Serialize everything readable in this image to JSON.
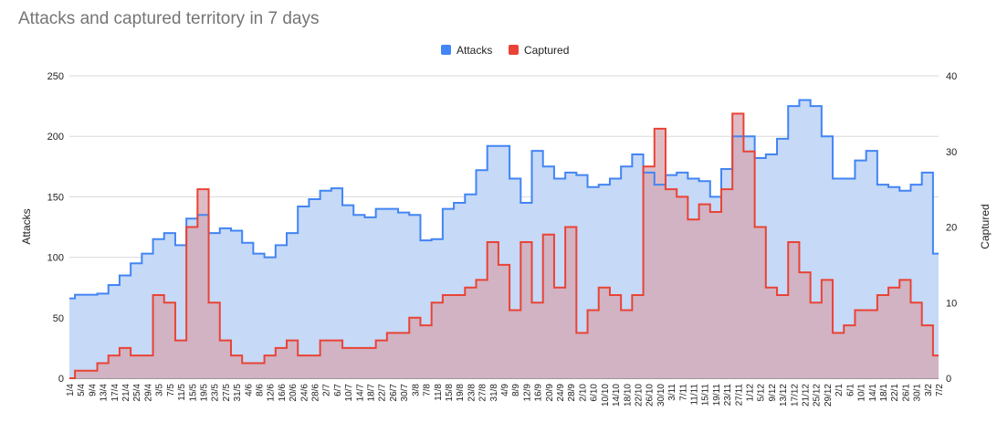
{
  "chart_data": {
    "type": "area",
    "title": "Attacks and captured territory in 7 days",
    "ylabel_left": "Attacks",
    "ylabel_right": "Captured",
    "ylim_left": [
      0,
      250
    ],
    "ylim_right": [
      0,
      40
    ],
    "yticks_left": [
      "0",
      "50",
      "100",
      "150",
      "200",
      "250"
    ],
    "yticks_right": [
      "0",
      "10",
      "20",
      "30",
      "40"
    ],
    "grid": true,
    "legend_position": "top-center",
    "x": [
      "1/4",
      "5/4",
      "9/4",
      "13/4",
      "17/4",
      "21/4",
      "25/4",
      "29/4",
      "3/5",
      "7/5",
      "11/5",
      "15/5",
      "19/5",
      "23/5",
      "27/5",
      "31/5",
      "4/6",
      "8/6",
      "12/6",
      "16/6",
      "20/6",
      "24/6",
      "28/6",
      "2/7",
      "6/7",
      "10/7",
      "14/7",
      "18/7",
      "22/7",
      "26/7",
      "30/7",
      "3/8",
      "7/8",
      "11/8",
      "15/8",
      "19/8",
      "23/8",
      "27/8",
      "31/8",
      "4/9",
      "8/9",
      "12/9",
      "16/9",
      "20/9",
      "24/9",
      "28/9",
      "2/10",
      "6/10",
      "10/10",
      "14/10",
      "18/10",
      "22/10",
      "26/10",
      "30/10",
      "3/11",
      "7/11",
      "11/11",
      "15/11",
      "19/11",
      "23/11",
      "27/11",
      "1/12",
      "5/12",
      "9/12",
      "13/12",
      "17/12",
      "21/12",
      "25/12",
      "29/12",
      "2/1",
      "6/1",
      "10/1",
      "14/1",
      "18/1",
      "22/1",
      "26/1",
      "30/1",
      "3/2",
      "7/2"
    ],
    "series": [
      {
        "name": "Attacks",
        "axis": "left",
        "color": "#4285f4",
        "fill": "#c6d9f7",
        "values": [
          66,
          69,
          69,
          70,
          77,
          85,
          95,
          103,
          115,
          120,
          110,
          132,
          135,
          120,
          124,
          122,
          112,
          103,
          100,
          110,
          120,
          142,
          148,
          155,
          157,
          143,
          135,
          133,
          140,
          140,
          137,
          135,
          114,
          115,
          140,
          145,
          152,
          172,
          192,
          192,
          165,
          145,
          188,
          175,
          165,
          170,
          168,
          158,
          160,
          165,
          175,
          185,
          170,
          160,
          168,
          170,
          165,
          163,
          150,
          173,
          200,
          200,
          182,
          185,
          198,
          225,
          230,
          225,
          200,
          165,
          165,
          180,
          188,
          160,
          158,
          155,
          160,
          170,
          103
        ]
      },
      {
        "name": "Captured",
        "axis": "right",
        "color": "#ea4335",
        "fill": "#d4a6b2",
        "values": [
          0,
          1,
          1,
          2,
          3,
          4,
          3,
          3,
          11,
          10,
          5,
          20,
          25,
          10,
          5,
          3,
          2,
          2,
          3,
          4,
          5,
          3,
          3,
          5,
          5,
          4,
          4,
          4,
          5,
          6,
          6,
          8,
          7,
          10,
          11,
          11,
          12,
          13,
          18,
          15,
          9,
          18,
          10,
          19,
          12,
          20,
          6,
          9,
          12,
          11,
          9,
          11,
          28,
          33,
          25,
          24,
          21,
          23,
          22,
          25,
          35,
          30,
          20,
          12,
          11,
          18,
          14,
          10,
          13,
          6,
          7,
          9,
          9,
          11,
          12,
          13,
          10,
          7,
          3
        ]
      }
    ]
  }
}
